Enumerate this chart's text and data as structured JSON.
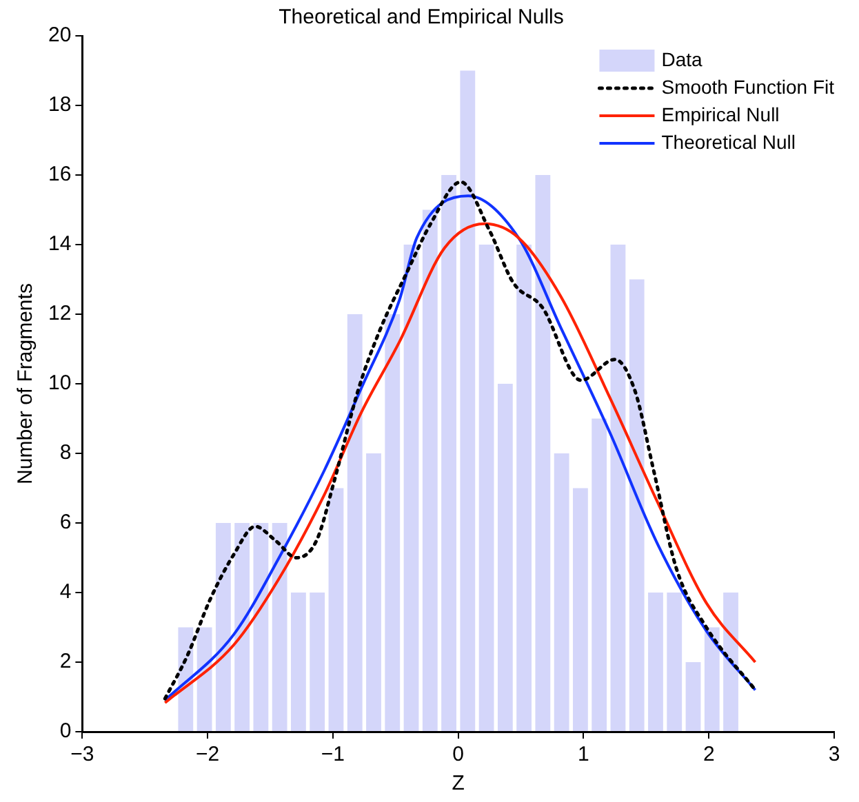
{
  "chart_data": {
    "type": "histogram",
    "title": "Theoretical and Empirical Nulls",
    "xlabel": "Z",
    "ylabel": "Number of Fragments",
    "xlim": [
      -3,
      3
    ],
    "xticks": [
      -3,
      -2,
      -1,
      0,
      1,
      2,
      3
    ],
    "ylim": [
      0,
      20
    ],
    "yticks": [
      0,
      2,
      4,
      6,
      8,
      10,
      12,
      14,
      16,
      18,
      20
    ],
    "grid": false,
    "legend": "top right",
    "marker": "none",
    "bins": [
      -2.25,
      -2.1,
      -1.95,
      -1.8,
      -1.65,
      -1.5,
      -1.35,
      -1.2,
      -1.05,
      -0.9,
      -0.75,
      -0.6,
      -0.45,
      -0.3,
      -0.15,
      0,
      0.15,
      0.3,
      0.45,
      0.6,
      0.75,
      0.9,
      1.05,
      1.2,
      1.35,
      1.5,
      1.65,
      1.8,
      1.95,
      2.1,
      2.25
    ],
    "series": [
      {
        "name": "Data",
        "color": "#d4d6fa",
        "values": [
          3,
          3,
          6,
          6,
          6,
          6,
          4,
          4,
          7,
          12,
          8,
          12,
          14,
          15,
          16,
          19,
          14,
          10,
          14,
          16,
          8,
          7,
          9,
          14,
          13,
          4,
          4,
          2,
          3,
          4
        ]
      },
      {
        "type": "line",
        "name": "Smooth Function Fit",
        "color": "#000000",
        "line_style": "dotted",
        "x": [
          -2.34,
          -2.16,
          -1.98,
          -1.79,
          -1.62,
          -1.46,
          -1.29,
          -1.13,
          -0.99,
          -0.8,
          -0.63,
          -0.41,
          -0.22,
          0.02,
          0.25,
          0.44,
          0.67,
          0.98,
          1.25,
          1.41,
          1.56,
          1.74,
          1.98,
          2.37
        ],
        "values": [
          0.95,
          2.2,
          3.8,
          5.1,
          5.9,
          5.5,
          5.0,
          5.5,
          7.2,
          9.8,
          11.5,
          13.2,
          14.6,
          15.8,
          14.4,
          12.9,
          12.2,
          10.1,
          10.7,
          9.8,
          7.5,
          4.7,
          3.0,
          1.2
        ]
      },
      {
        "type": "line",
        "name": "Empirical Null",
        "color": "#ff2200",
        "line_style": "solid",
        "x": [
          -2.34,
          -1.79,
          -1.43,
          -1.07,
          -0.77,
          -0.47,
          -0.11,
          0.21,
          0.48,
          0.82,
          1.21,
          1.59,
          1.98,
          2.37
        ],
        "values": [
          0.83,
          2.5,
          4.4,
          6.8,
          9.2,
          11.2,
          13.9,
          14.6,
          14.2,
          12.5,
          9.6,
          6.6,
          3.7,
          2.0
        ]
      },
      {
        "type": "line",
        "name": "Theoretical Null",
        "color": "#1133ff",
        "line_style": "solid",
        "x": [
          -2.34,
          -1.79,
          -1.43,
          -1.07,
          -0.77,
          -0.47,
          -0.33,
          0.08,
          0.48,
          0.82,
          1.21,
          1.59,
          1.98,
          2.37
        ],
        "values": [
          0.9,
          2.8,
          5.0,
          7.5,
          9.9,
          12.4,
          14.2,
          15.4,
          14.2,
          11.6,
          8.6,
          5.4,
          2.9,
          1.2
        ]
      }
    ]
  }
}
